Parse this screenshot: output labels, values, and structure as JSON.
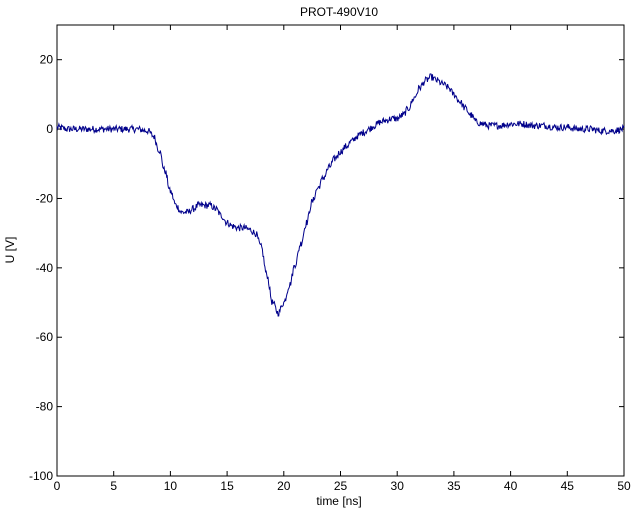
{
  "chart_data": {
    "type": "line",
    "title": "PROT-490V10",
    "xlabel": "time [ns]",
    "ylabel": "U [V]",
    "xlim": [
      0,
      50
    ],
    "ylim": [
      -100,
      30
    ],
    "x_ticks": [
      0,
      5,
      10,
      15,
      20,
      25,
      30,
      35,
      40,
      45,
      50
    ],
    "y_ticks": [
      -100,
      -80,
      -60,
      -40,
      -20,
      0,
      20
    ],
    "grid": false,
    "line_color": "#00008b",
    "series": [
      {
        "x": [
          0,
          1,
          2,
          3,
          4,
          5,
          6,
          7,
          8,
          8.5,
          9,
          9.5,
          10,
          10.5,
          11,
          11.5,
          12,
          12.5,
          13,
          13.5,
          14,
          14.5,
          15,
          15.5,
          16,
          16.5,
          17,
          17.5,
          18,
          18.5,
          19,
          19.5,
          20,
          20.5,
          21,
          21.5,
          22,
          22.5,
          23,
          23.5,
          24,
          24.5,
          25,
          25.5,
          26,
          26.5,
          27,
          27.5,
          28,
          28.5,
          29,
          29.5,
          30,
          30.5,
          31,
          31.5,
          32,
          32.5,
          33,
          33.5,
          34,
          34.5,
          35,
          35.5,
          36,
          36.5,
          37,
          37.5,
          38,
          39,
          40,
          41,
          42,
          43,
          44,
          45,
          46,
          47,
          48,
          49,
          50
        ],
        "y": [
          0.5,
          0,
          0,
          0,
          0,
          0,
          0,
          0,
          -0.5,
          -2,
          -6,
          -12,
          -18,
          -22,
          -24,
          -24,
          -23,
          -22,
          -22,
          -22,
          -23,
          -25,
          -27,
          -28,
          -28.5,
          -28.5,
          -29,
          -30,
          -34,
          -42,
          -50,
          -53,
          -50,
          -45,
          -39,
          -33,
          -27,
          -21,
          -17,
          -14,
          -11,
          -8.5,
          -6.5,
          -5,
          -3.5,
          -2,
          -1,
          0,
          1,
          2,
          2.5,
          3,
          3,
          4,
          6,
          9,
          12,
          14,
          15,
          14,
          13,
          12,
          10,
          8,
          6,
          4,
          2,
          1.5,
          1,
          1,
          1.5,
          1.5,
          1,
          1,
          0.5,
          0.5,
          0,
          0,
          -0.5,
          -0.5,
          0
        ]
      }
    ]
  }
}
